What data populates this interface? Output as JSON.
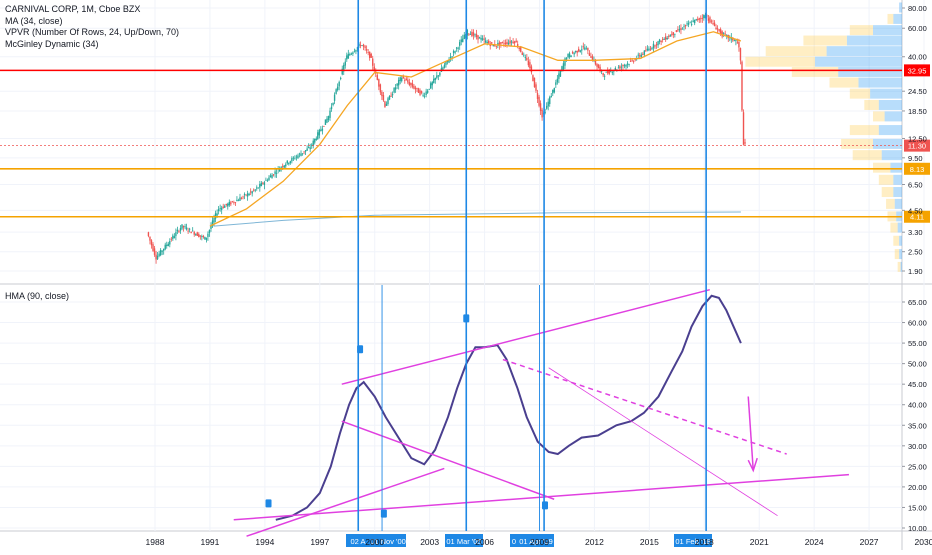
{
  "header": {
    "title": "CARNIVAL CORP, 1M, Cboe BZX",
    "indicators": [
      "MA (34, close)",
      "VPVR (Number Of Rows, 24, Up/Down, 70)",
      "McGinley Dynamic (34)"
    ]
  },
  "lower_pane": {
    "title": "HMA (90, close)"
  },
  "colors": {
    "up": "#26a69a",
    "down": "#ef5350",
    "ma": "#f5a623",
    "mcginley": "#7fb6d6",
    "hma": "#4a3f8f",
    "trend": "#e040e0",
    "vline": "#1e88e5",
    "red_line": "#ff0000",
    "orange_line": "#f5a300",
    "vp_up": "#2196f3",
    "vp_down": "#ffc947"
  },
  "chart_data": [
    {
      "type": "candlestick",
      "title": "CARNIVAL CORP, 1M, Cboe BZX",
      "yscale": "log",
      "ylim": [
        1.7,
        95
      ],
      "y_ticks": [
        "80.00",
        "60.00",
        "40.00",
        "32.95",
        "24.50",
        "18.50",
        "12.50",
        "11.30",
        "9.50",
        "8.13",
        "6.50",
        "4.50",
        "4.11",
        "3.30",
        "2.50",
        "1.90"
      ],
      "price_anchors": [
        {
          "x": 1987.6,
          "y": 3.3
        },
        {
          "x": 1988.1,
          "y": 2.3
        },
        {
          "x": 1989.5,
          "y": 3.6
        },
        {
          "x": 1990.8,
          "y": 3.0
        },
        {
          "x": 1991.5,
          "y": 4.6
        },
        {
          "x": 1992.5,
          "y": 5.2
        },
        {
          "x": 1993.5,
          "y": 6.0
        },
        {
          "x": 1995.0,
          "y": 8.5
        },
        {
          "x": 1996.5,
          "y": 11.0
        },
        {
          "x": 1997.5,
          "y": 17.0
        },
        {
          "x": 1998.5,
          "y": 40.0
        },
        {
          "x": 1999.3,
          "y": 48.0
        },
        {
          "x": 1999.8,
          "y": 40.0
        },
        {
          "x": 2000.6,
          "y": 20.0
        },
        {
          "x": 2001.5,
          "y": 30.0
        },
        {
          "x": 2002.7,
          "y": 23.0
        },
        {
          "x": 2004.5,
          "y": 45.0
        },
        {
          "x": 2005.1,
          "y": 57.0
        },
        {
          "x": 2006.5,
          "y": 47.0
        },
        {
          "x": 2007.7,
          "y": 50.0
        },
        {
          "x": 2008.5,
          "y": 35.0
        },
        {
          "x": 2009.2,
          "y": 17.0
        },
        {
          "x": 2010.5,
          "y": 40.0
        },
        {
          "x": 2011.5,
          "y": 46.0
        },
        {
          "x": 2012.5,
          "y": 31.0
        },
        {
          "x": 2014.0,
          "y": 37.0
        },
        {
          "x": 2015.5,
          "y": 49.0
        },
        {
          "x": 2017.0,
          "y": 62.0
        },
        {
          "x": 2018.1,
          "y": 72.0
        },
        {
          "x": 2019.0,
          "y": 55.0
        },
        {
          "x": 2019.8,
          "y": 50.0
        },
        {
          "x": 2020.0,
          "y": 43.0
        },
        {
          "x": 2020.15,
          "y": 12.0
        },
        {
          "x": 2020.25,
          "y": 11.3
        }
      ],
      "ma_34": [
        {
          "x": 1991.0,
          "y": 3.6
        },
        {
          "x": 1993.0,
          "y": 4.6
        },
        {
          "x": 1995.0,
          "y": 6.8
        },
        {
          "x": 1997.0,
          "y": 11.5
        },
        {
          "x": 1998.5,
          "y": 20.0
        },
        {
          "x": 2000.0,
          "y": 32.0
        },
        {
          "x": 2002.0,
          "y": 30.0
        },
        {
          "x": 2004.0,
          "y": 38.0
        },
        {
          "x": 2006.0,
          "y": 48.0
        },
        {
          "x": 2008.0,
          "y": 46.0
        },
        {
          "x": 2010.0,
          "y": 38.0
        },
        {
          "x": 2012.0,
          "y": 38.0
        },
        {
          "x": 2014.5,
          "y": 39.0
        },
        {
          "x": 2016.5,
          "y": 50.0
        },
        {
          "x": 2018.5,
          "y": 57.0
        },
        {
          "x": 2020.0,
          "y": 50.0
        }
      ],
      "mcginley_34": [
        {
          "x": 1991.2,
          "y": 3.6
        },
        {
          "x": 1995.0,
          "y": 3.9
        },
        {
          "x": 2000.0,
          "y": 4.2
        },
        {
          "x": 2010.0,
          "y": 4.35
        },
        {
          "x": 2020.0,
          "y": 4.4
        }
      ],
      "horizontal_levels": [
        {
          "label": "32.95",
          "y": 32.95,
          "color": "#ff0000"
        },
        {
          "label": "11.30",
          "y": 11.3,
          "color": "#ef5350",
          "style": "dotted"
        },
        {
          "label": "8.13",
          "y": 8.13,
          "color": "#f5a300"
        },
        {
          "label": "4.11",
          "y": 4.11,
          "color": "#f5a300"
        }
      ],
      "volume_profile": [
        {
          "y": 80.0,
          "up": 0.02,
          "down": 0.0
        },
        {
          "y": 68.0,
          "up": 0.06,
          "down": 0.04
        },
        {
          "y": 58.0,
          "up": 0.2,
          "down": 0.16
        },
        {
          "y": 50.0,
          "up": 0.38,
          "down": 0.3
        },
        {
          "y": 43.0,
          "up": 0.52,
          "down": 0.42
        },
        {
          "y": 37.0,
          "up": 0.6,
          "down": 0.48
        },
        {
          "y": 32.0,
          "up": 0.44,
          "down": 0.32
        },
        {
          "y": 27.5,
          "up": 0.3,
          "down": 0.2
        },
        {
          "y": 23.5,
          "up": 0.22,
          "down": 0.14
        },
        {
          "y": 20.0,
          "up": 0.16,
          "down": 0.1
        },
        {
          "y": 17.0,
          "up": 0.12,
          "down": 0.08
        },
        {
          "y": 14.0,
          "up": 0.16,
          "down": 0.2
        },
        {
          "y": 11.5,
          "up": 0.2,
          "down": 0.22
        },
        {
          "y": 9.8,
          "up": 0.14,
          "down": 0.2
        },
        {
          "y": 8.2,
          "up": 0.08,
          "down": 0.12
        },
        {
          "y": 6.9,
          "up": 0.06,
          "down": 0.1
        },
        {
          "y": 5.8,
          "up": 0.06,
          "down": 0.08
        },
        {
          "y": 4.9,
          "up": 0.05,
          "down": 0.06
        },
        {
          "y": 4.1,
          "up": 0.04,
          "down": 0.06
        },
        {
          "y": 3.5,
          "up": 0.03,
          "down": 0.05
        },
        {
          "y": 2.9,
          "up": 0.02,
          "down": 0.04
        },
        {
          "y": 2.4,
          "up": 0.02,
          "down": 0.03
        },
        {
          "y": 2.0,
          "up": 0.01,
          "down": 0.02
        }
      ]
    },
    {
      "type": "line",
      "title": "HMA (90, close)",
      "ylim": [
        9,
        69
      ],
      "y_ticks": [
        "65.00",
        "60.00",
        "55.00",
        "50.00",
        "45.00",
        "40.00",
        "35.00",
        "30.00",
        "25.00",
        "20.00",
        "15.00",
        "10.00"
      ],
      "series": [
        {
          "name": "HMA (90, close)",
          "x": [
            1994.6,
            1995.5,
            1996.3,
            1997.0,
            1997.6,
            1998.1,
            1998.6,
            1999.0,
            1999.4,
            2000.0,
            2000.6,
            2001.3,
            2002.0,
            2002.7,
            2003.3,
            2004.0,
            2004.5,
            2005.0,
            2005.5,
            2006.0,
            2006.7,
            2007.2,
            2007.8,
            2008.3,
            2008.9,
            2009.5,
            2010.0,
            2010.6,
            2011.3,
            2012.2,
            2013.2,
            2014.0,
            2014.7,
            2015.5,
            2016.2,
            2016.8,
            2017.3,
            2017.9,
            2018.4,
            2018.8,
            2019.2,
            2019.6,
            2020.0
          ],
          "values": [
            12,
            13,
            15,
            18.5,
            25,
            33,
            40,
            44,
            45.5,
            42,
            37,
            32,
            27,
            25.5,
            29,
            37,
            44,
            50,
            54,
            54,
            54.5,
            51,
            44,
            37,
            31,
            28.5,
            28,
            30,
            32,
            32.5,
            35,
            36,
            38,
            42,
            48,
            53,
            59,
            64,
            66.5,
            66,
            63,
            59,
            55
          ]
        }
      ]
    }
  ],
  "x_axis": {
    "ticks": [
      "1988",
      "1991",
      "1994",
      "1997",
      "2000",
      "2003",
      "2006",
      "2009",
      "2012",
      "2015",
      "2018",
      "2021",
      "2024",
      "2027",
      "2030"
    ]
  },
  "vertical_markers": [
    {
      "label": "02 A",
      "x": 1999.1,
      "color": "#1e88e5"
    },
    {
      "label": "01 Nov '00",
      "x": 2000.4,
      "color": "#1e88e5"
    },
    {
      "label": "01 Mar '05",
      "x": 2005.0,
      "color": "#1e88e5"
    },
    {
      "label": "0",
      "x": 2009.0,
      "color": "#1e88e5"
    },
    {
      "label": "01 Apr '09",
      "x": 2009.25,
      "color": "#1e88e5"
    },
    {
      "label": "01 Feb '18",
      "x": 2018.1,
      "color": "#1e88e5"
    }
  ]
}
